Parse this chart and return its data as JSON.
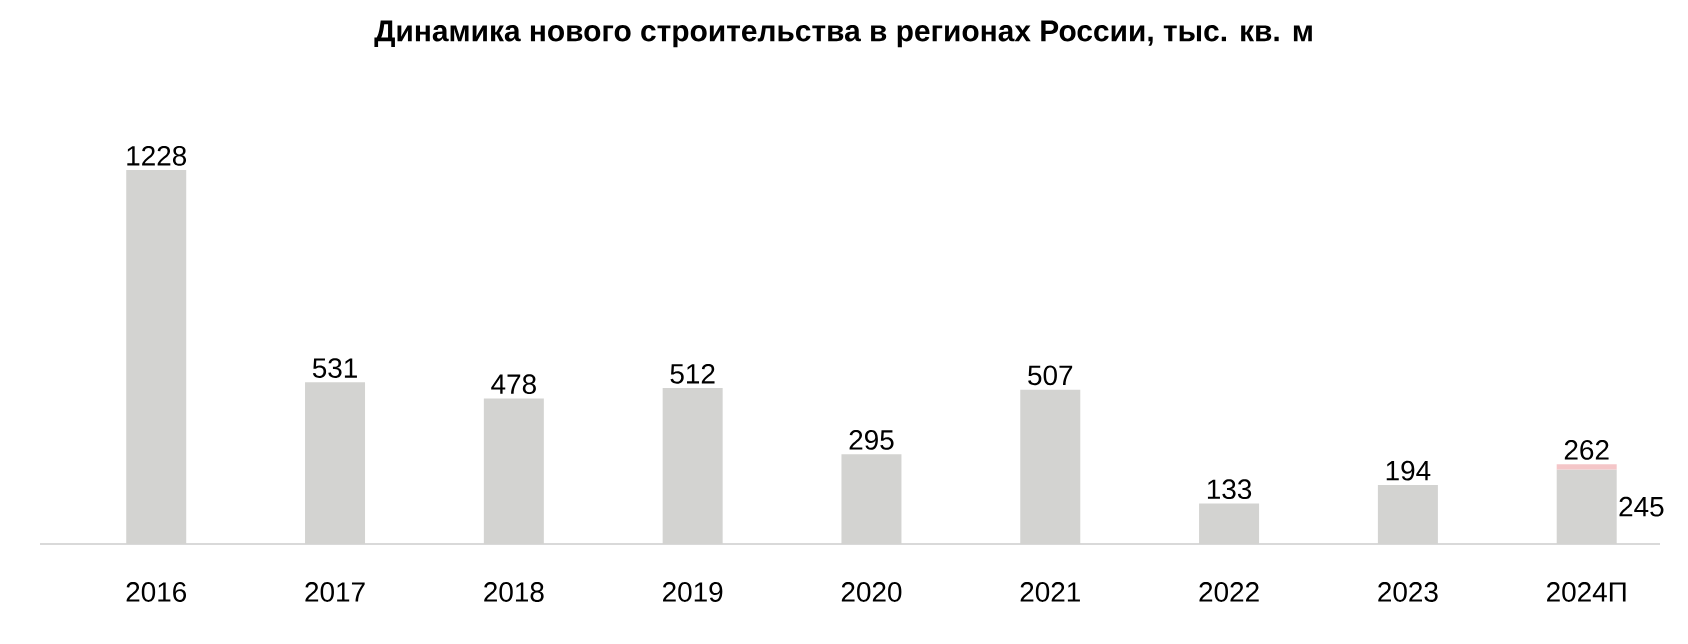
{
  "chart_data": {
    "type": "bar",
    "title": "Динамика нового строительства в регионах России, тыс. кв. м",
    "categories": [
      "2016",
      "2017",
      "2018",
      "2019",
      "2020",
      "2021",
      "2022",
      "2023",
      "2024П"
    ],
    "stacked": true,
    "series": [
      {
        "color": "#d3d3d1",
        "values": [
          1228,
          531,
          478,
          512,
          295,
          507,
          133,
          194,
          245
        ],
        "value_labels": [
          "1228",
          "531",
          "478",
          "512",
          "295",
          "507",
          "133",
          "194",
          "245"
        ]
      },
      {
        "color": "#f4c6c8",
        "values": [
          null,
          null,
          null,
          null,
          null,
          null,
          null,
          null,
          17
        ]
      }
    ],
    "totals": [
      null,
      null,
      null,
      null,
      null,
      null,
      null,
      null,
      "262"
    ]
  }
}
